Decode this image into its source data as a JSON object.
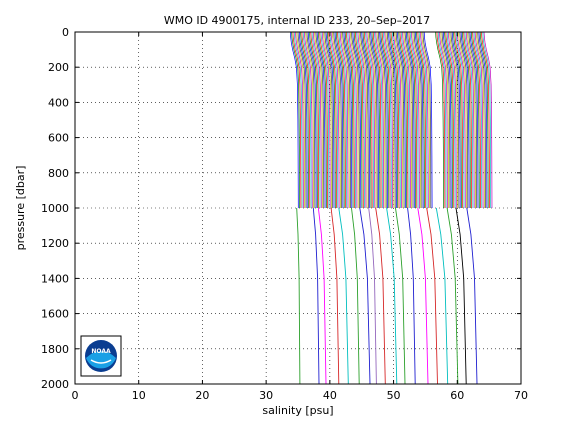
{
  "chart_data": {
    "type": "line",
    "title": "WMO ID 4900175, internal ID 233, 20–Sep–2017",
    "xlabel": "salinity [psu]",
    "ylabel": "pressure [dbar]",
    "xlim": [
      0,
      70
    ],
    "ylim": [
      0,
      2000
    ],
    "y_reversed": true,
    "grid": true,
    "x_ticks": [
      0,
      10,
      20,
      30,
      40,
      50,
      60,
      70
    ],
    "y_ticks": [
      0,
      200,
      400,
      600,
      800,
      1000,
      1200,
      1400,
      1600,
      1800,
      2000
    ],
    "profile_offset_psu": 0.2,
    "shallow_profiles": {
      "count": 145,
      "first_surface_salinity": 33.8,
      "pressure_range": [
        0,
        1000
      ],
      "surface_salinity": 33.8,
      "salinity_at_1000dbar": 35.0
    },
    "deep_profiles": {
      "pressure_range": [
        1000,
        2000
      ],
      "x_at_2000dbar": [
        35.3,
        38.3,
        39.4,
        41.4,
        42.9,
        44.6,
        46.3,
        47.3,
        48.7,
        50.5,
        51.8,
        53.4,
        55.4,
        56.9,
        58.5,
        60.1,
        61.4,
        63.1
      ],
      "x_at_1000dbar": [
        34.8,
        37.4,
        38.2,
        40.2,
        41.4,
        43.4,
        44.7,
        46.1,
        47.2,
        48.9,
        50.3,
        52.2,
        53.8,
        55.2,
        56.7,
        58.4,
        59.8,
        61.5
      ],
      "colors": [
        "#2ca02c",
        "#1f1fd0",
        "#ff00ff",
        "#d62728",
        "#00bfbf",
        "#2ca02c",
        "#1f1fd0",
        "#9467bd",
        "#d62728",
        "#00bfbf",
        "#2ca02c",
        "#1f1fd0",
        "#ff00ff",
        "#d62728",
        "#00bfbf",
        "#2ca02c",
        "#000000",
        "#1f1fd0"
      ]
    },
    "line_colors": [
      "#0000ff",
      "#008000",
      "#ff0000",
      "#00bfbf",
      "#bf00bf",
      "#bfbf00",
      "#404040"
    ]
  },
  "logo": {
    "text": "NOAA"
  }
}
